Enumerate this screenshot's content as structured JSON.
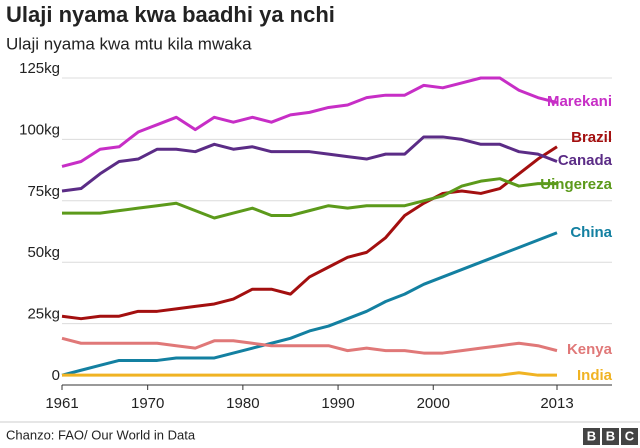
{
  "chart_data": {
    "type": "line",
    "title": "Ulaji nyama kwa baadhi ya nchi",
    "subtitle": "Ulaji nyama kwa mtu kila mwaka",
    "source": "Chanzo: FAO/ Our World in Data",
    "logo": [
      "B",
      "B",
      "C"
    ],
    "x": [
      1961,
      1963,
      1965,
      1967,
      1969,
      1971,
      1973,
      1975,
      1977,
      1979,
      1981,
      1983,
      1985,
      1987,
      1989,
      1991,
      1993,
      1995,
      1997,
      1999,
      2001,
      2003,
      2005,
      2007,
      2009,
      2011,
      2013
    ],
    "xlim": [
      1961,
      2013
    ],
    "xticks": [
      1961,
      1970,
      1980,
      1990,
      2000,
      2013
    ],
    "ylim": [
      0,
      125
    ],
    "yticks": [
      {
        "value": 0,
        "label": "0"
      },
      {
        "value": 25,
        "label": "25kg"
      },
      {
        "value": 50,
        "label": "50kg"
      },
      {
        "value": 75,
        "label": "75kg"
      },
      {
        "value": 100,
        "label": "100kg"
      },
      {
        "value": 125,
        "label": "125kg"
      }
    ],
    "grid": true,
    "series": [
      {
        "name": "Marekani",
        "color": "#c72ec6",
        "values": [
          89,
          91,
          96,
          97,
          103,
          106,
          109,
          104,
          109,
          107,
          109,
          107,
          110,
          111,
          113,
          114,
          117,
          118,
          118,
          122,
          121,
          123,
          125,
          125,
          120,
          117,
          115
        ]
      },
      {
        "name": "Brazil",
        "color": "#a30f0f",
        "values": [
          28,
          27,
          28,
          28,
          30,
          30,
          31,
          32,
          33,
          35,
          39,
          39,
          37,
          44,
          48,
          52,
          54,
          60,
          69,
          74,
          78,
          79,
          78,
          80,
          86,
          92,
          97
        ]
      },
      {
        "name": "Canada",
        "color": "#5b2c86",
        "values": [
          79,
          80,
          86,
          91,
          92,
          96,
          96,
          95,
          98,
          96,
          97,
          95,
          95,
          95,
          94,
          93,
          92,
          94,
          94,
          101,
          101,
          100,
          98,
          98,
          95,
          94,
          91
        ]
      },
      {
        "name": "Uingereza",
        "color": "#5c9a1b",
        "values": [
          70,
          70,
          70,
          71,
          72,
          73,
          74,
          71,
          68,
          70,
          72,
          69,
          69,
          71,
          73,
          72,
          73,
          73,
          73,
          75,
          77,
          81,
          83,
          84,
          81,
          82,
          82
        ]
      },
      {
        "name": "China",
        "color": "#1380a1",
        "values": [
          4,
          6,
          8,
          10,
          10,
          10,
          11,
          11,
          11,
          13,
          15,
          17,
          19,
          22,
          24,
          27,
          30,
          34,
          37,
          41,
          44,
          47,
          50,
          53,
          56,
          59,
          62
        ]
      },
      {
        "name": "Kenya",
        "color": "#e07878",
        "values": [
          19,
          17,
          17,
          17,
          17,
          17,
          16,
          15,
          18,
          18,
          17,
          16,
          16,
          16,
          16,
          14,
          15,
          14,
          14,
          13,
          13,
          14,
          15,
          16,
          17,
          16,
          14
        ]
      },
      {
        "name": "India",
        "color": "#f0b323",
        "values": [
          4,
          4,
          4,
          4,
          4,
          4,
          4,
          4,
          4,
          4,
          4,
          4,
          4,
          4,
          4,
          4,
          4,
          4,
          4,
          4,
          4,
          4,
          4,
          4,
          5,
          4,
          4
        ]
      }
    ]
  }
}
